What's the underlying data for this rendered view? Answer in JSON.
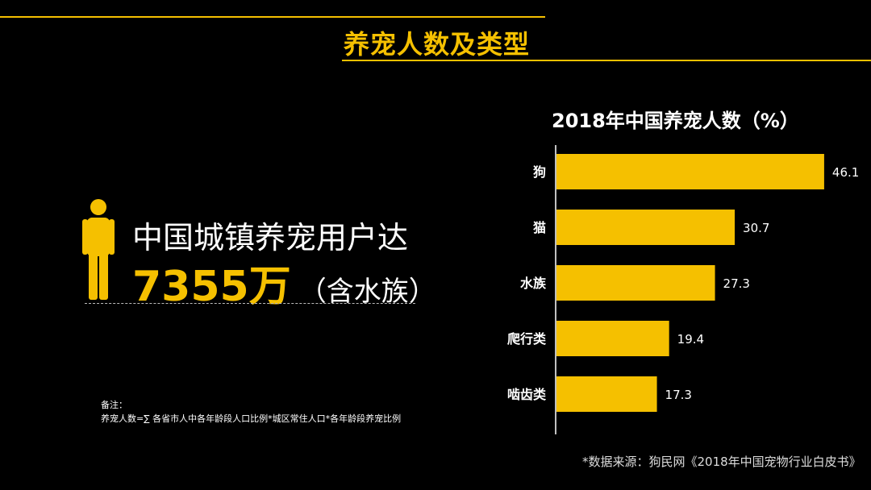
{
  "header": {
    "title": "养宠人数及类型"
  },
  "stat": {
    "line1": "中国城镇养宠用户达",
    "number": "7355",
    "unit": "万",
    "note_paren": "（含水族）"
  },
  "notes": {
    "label": "备注：",
    "formula": "养宠人数=∑ 各省市人中各年龄段人口比例*城区常住人口*各年龄段养宠比例"
  },
  "chart_data": {
    "type": "bar",
    "orientation": "horizontal",
    "title": "2018年中国养宠人数（%）",
    "categories": [
      "狗",
      "猫",
      "水族",
      "爬行类",
      "啮齿类"
    ],
    "values": [
      46.1,
      30.7,
      27.3,
      19.4,
      17.3
    ],
    "xlim": [
      0,
      50
    ],
    "grid": false,
    "bar_color": "#f5c000"
  },
  "source": "*数据来源：狗民网《2018年中国宠物行业白皮书》",
  "colors": {
    "accent": "#f5c000",
    "background": "#000000"
  }
}
